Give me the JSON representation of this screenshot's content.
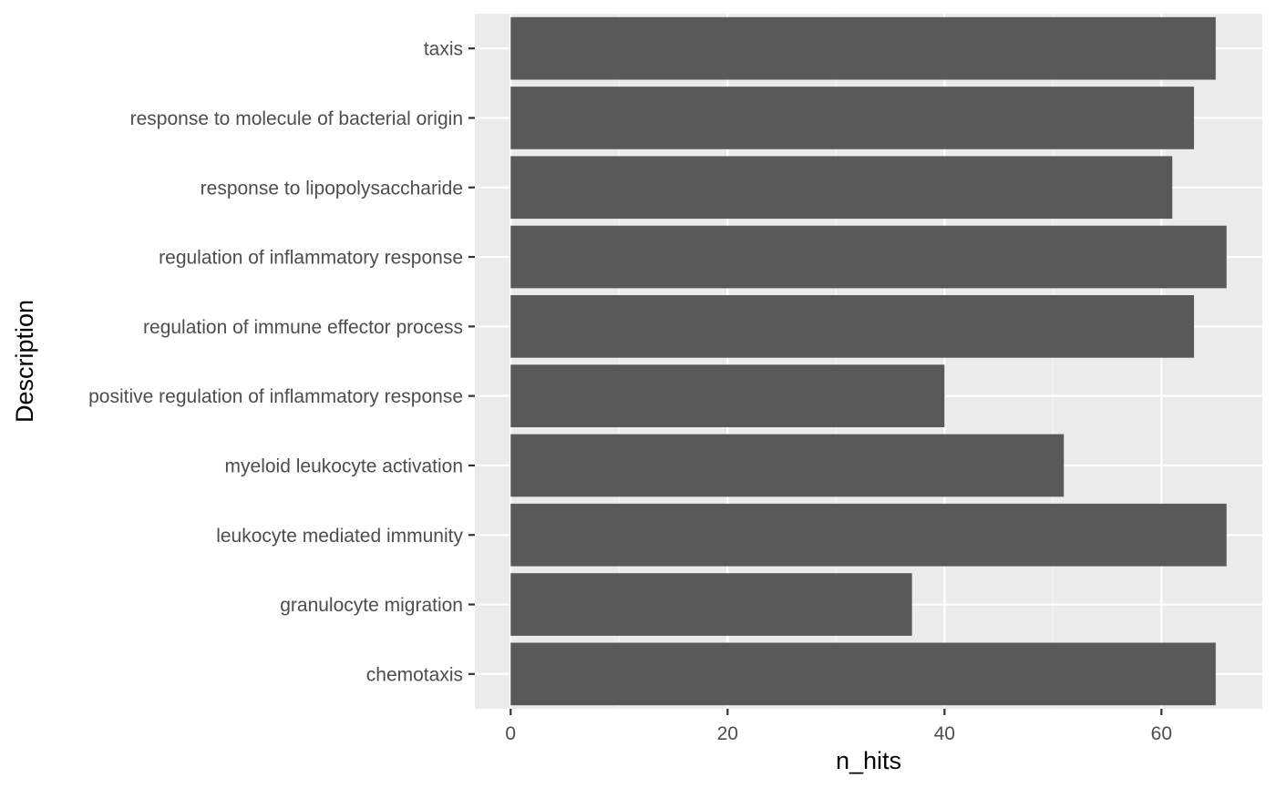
{
  "chart_data": {
    "type": "bar",
    "orientation": "horizontal",
    "categories": [
      "taxis",
      "response to molecule of bacterial origin",
      "response to lipopolysaccharide",
      "regulation of inflammatory response",
      "regulation of immune effector process",
      "positive regulation of inflammatory response",
      "myeloid leukocyte activation",
      "leukocyte mediated immunity",
      "granulocyte migration",
      "chemotaxis"
    ],
    "values": [
      65,
      63,
      61,
      66,
      63,
      40,
      51,
      66,
      37,
      65
    ],
    "xlabel": "n_hits",
    "ylabel": "Description",
    "xlim": [
      -3.3,
      69.3
    ],
    "xticks": [
      0,
      20,
      40,
      60
    ],
    "xtick_labels": [
      "0",
      "20",
      "40",
      "60"
    ],
    "grid": true,
    "colors": {
      "panel_background": "#EBEBEB",
      "grid_major": "#FFFFFF",
      "grid_minor": "#F5F5F5",
      "bar_fill": "#595959",
      "tick_mark": "#333333",
      "tick_label": "#4D4D4D",
      "axis_title": "#000000"
    }
  }
}
